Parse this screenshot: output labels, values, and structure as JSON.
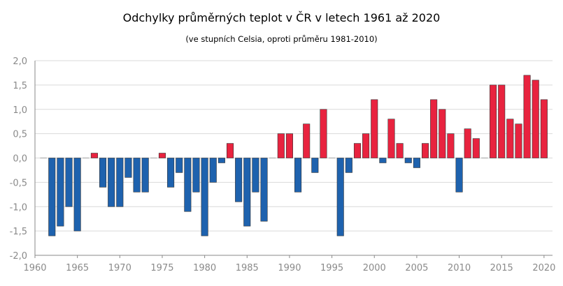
{
  "chart_data": {
    "type": "bar",
    "title": "Odchylky průměrných teplot v ČR v letech 1961 až 2020",
    "subtitle": "(ve stupních Celsia, oproti průměru 1981-2010)",
    "xlabel": "",
    "ylabel": "",
    "xlim": [
      1960,
      2021
    ],
    "ylim": [
      -2.0,
      2.0
    ],
    "y_ticks": [
      "-2,0",
      "-1,5",
      "-1,0",
      "-0,5",
      "0,0",
      "0,5",
      "1,0",
      "1,5",
      "2,0"
    ],
    "x_ticks": [
      "1960",
      "1965",
      "1970",
      "1975",
      "1980",
      "1985",
      "1990",
      "1995",
      "2000",
      "2005",
      "2010",
      "2015",
      "2020"
    ],
    "grid": true,
    "colors": {
      "positive": "#e8233f",
      "negative": "#1e62ae",
      "grid": "#d9d9d9",
      "axis": "#8a8a8a"
    },
    "years": [
      1961,
      1962,
      1963,
      1964,
      1965,
      1966,
      1967,
      1968,
      1969,
      1970,
      1971,
      1972,
      1973,
      1974,
      1975,
      1976,
      1977,
      1978,
      1979,
      1980,
      1981,
      1982,
      1983,
      1984,
      1985,
      1986,
      1987,
      1988,
      1989,
      1990,
      1991,
      1992,
      1993,
      1994,
      1995,
      1996,
      1997,
      1998,
      1999,
      2000,
      2001,
      2002,
      2003,
      2004,
      2005,
      2006,
      2007,
      2008,
      2009,
      2010,
      2011,
      2012,
      2013,
      2014,
      2015,
      2016,
      2017,
      2018,
      2019,
      2020
    ],
    "values": [
      0.0,
      -1.6,
      -1.4,
      -1.0,
      -1.5,
      0.0,
      0.1,
      -0.6,
      -1.0,
      -1.0,
      -0.4,
      -0.7,
      -0.7,
      0.0,
      0.1,
      -0.6,
      -0.3,
      -1.1,
      -0.7,
      -1.6,
      -0.5,
      -0.1,
      0.3,
      -0.9,
      -1.4,
      -0.7,
      -1.3,
      0.0,
      0.5,
      0.5,
      -0.7,
      0.7,
      -0.3,
      1.0,
      0.0,
      -1.6,
      -0.3,
      0.3,
      0.5,
      1.2,
      -0.1,
      0.8,
      0.3,
      -0.1,
      -0.2,
      0.3,
      1.2,
      1.0,
      0.5,
      -0.7,
      0.6,
      0.4,
      0.0,
      1.5,
      1.5,
      0.8,
      0.7,
      1.7,
      1.6,
      1.2
    ]
  }
}
